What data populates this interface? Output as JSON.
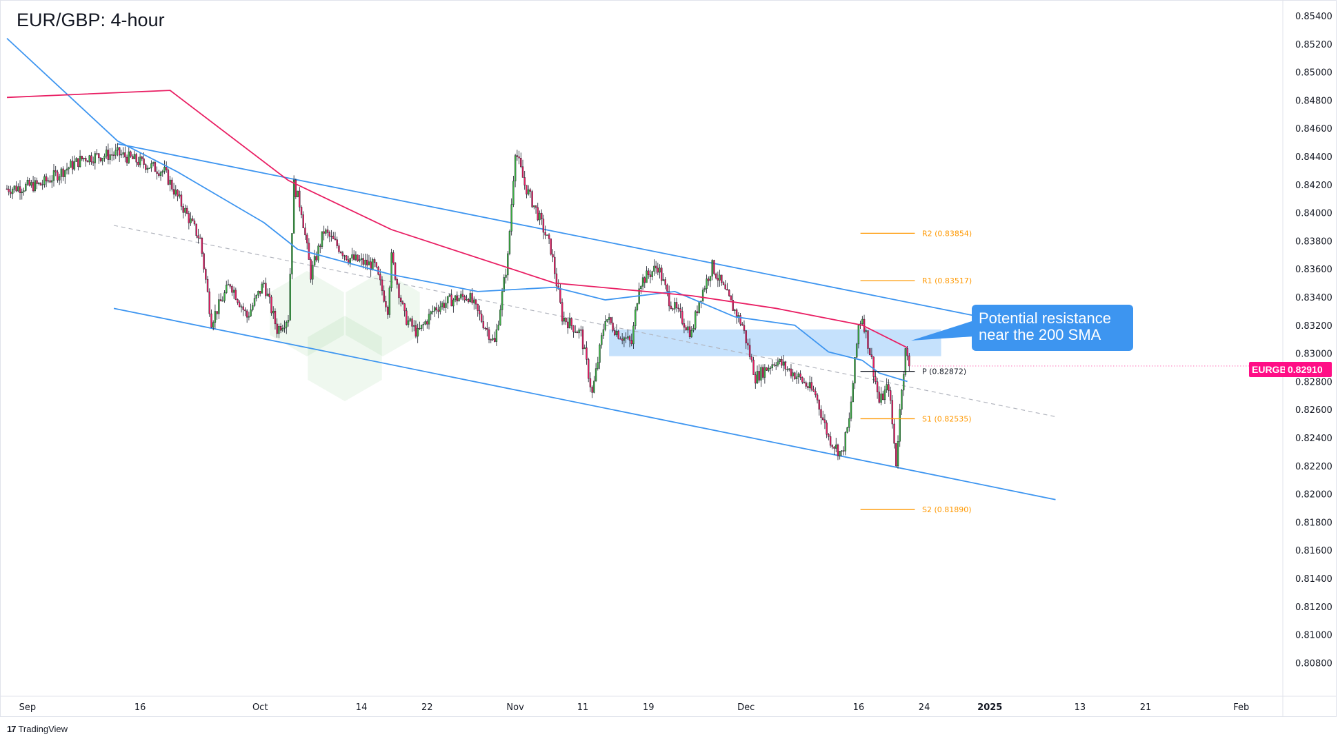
{
  "title": "EUR/GBP: 4-hour",
  "branding": "TradingView",
  "callout": {
    "line1": "Potential resistance",
    "line2": "near the 200 SMA",
    "color": "#3d95f0"
  },
  "price_tag": {
    "symbol": "EURGBP",
    "value": "0.82910",
    "color": "#ff0e86"
  },
  "colors": {
    "up": "#3cb043",
    "down": "#e91e63",
    "sma200": "#e91e63",
    "sma100": "#3d95f0",
    "channel": "#3d95f0",
    "pivot": "#ff9800",
    "zone": "#bbdcfb"
  },
  "chart_data": {
    "type": "candlestick",
    "ylim": [
      0.806,
      0.855
    ],
    "y_ticks": [
      "0.85400",
      "0.85200",
      "0.85000",
      "0.84800",
      "0.84600",
      "0.84400",
      "0.84200",
      "0.84000",
      "0.83800",
      "0.83600",
      "0.83400",
      "0.83200",
      "0.83000",
      "0.82800",
      "0.82600",
      "0.82400",
      "0.82200",
      "0.82000",
      "0.81800",
      "0.81600",
      "0.81400",
      "0.81200",
      "0.81000",
      "0.80800"
    ],
    "x_ticks": [
      {
        "label": "Sep",
        "bar": 11
      },
      {
        "label": "16",
        "bar": 71
      },
      {
        "label": "Oct",
        "bar": 135
      },
      {
        "label": "14",
        "bar": 189
      },
      {
        "label": "22",
        "bar": 224
      },
      {
        "label": "Nov",
        "bar": 271
      },
      {
        "label": "11",
        "bar": 307
      },
      {
        "label": "19",
        "bar": 342
      },
      {
        "label": "Dec",
        "bar": 394
      },
      {
        "label": "16",
        "bar": 454
      },
      {
        "label": "24",
        "bar": 489
      },
      {
        "label": "2025",
        "bar": 524
      },
      {
        "label": "13",
        "bar": 572
      },
      {
        "label": "21",
        "bar": 607
      },
      {
        "label": "Feb",
        "bar": 658
      }
    ],
    "price_path": [
      [
        0,
        0.8417
      ],
      [
        18,
        0.842
      ],
      [
        41,
        0.8439
      ],
      [
        59,
        0.8442
      ],
      [
        73,
        0.8435
      ],
      [
        84,
        0.8429
      ],
      [
        91,
        0.8411
      ],
      [
        103,
        0.8381
      ],
      [
        109,
        0.8323
      ],
      [
        119,
        0.835
      ],
      [
        128,
        0.8326
      ],
      [
        137,
        0.835
      ],
      [
        144,
        0.8317
      ],
      [
        150,
        0.8326
      ],
      [
        153,
        0.842
      ],
      [
        157,
        0.8402
      ],
      [
        162,
        0.8356
      ],
      [
        169,
        0.8387
      ],
      [
        182,
        0.8368
      ],
      [
        196,
        0.8362
      ],
      [
        203,
        0.8332
      ],
      [
        205,
        0.8368
      ],
      [
        212,
        0.8326
      ],
      [
        219,
        0.8314
      ],
      [
        228,
        0.8332
      ],
      [
        237,
        0.8338
      ],
      [
        246,
        0.8341
      ],
      [
        260,
        0.8307
      ],
      [
        267,
        0.8368
      ],
      [
        271,
        0.8445
      ],
      [
        276,
        0.842
      ],
      [
        283,
        0.8399
      ],
      [
        290,
        0.8374
      ],
      [
        296,
        0.8326
      ],
      [
        306,
        0.8314
      ],
      [
        312,
        0.8271
      ],
      [
        319,
        0.8326
      ],
      [
        326,
        0.8314
      ],
      [
        333,
        0.8307
      ],
      [
        337,
        0.835
      ],
      [
        347,
        0.8362
      ],
      [
        353,
        0.8338
      ],
      [
        365,
        0.8314
      ],
      [
        369,
        0.8338
      ],
      [
        376,
        0.8362
      ],
      [
        385,
        0.8338
      ],
      [
        392,
        0.832
      ],
      [
        399,
        0.8283
      ],
      [
        410,
        0.8295
      ],
      [
        422,
        0.8283
      ],
      [
        431,
        0.8271
      ],
      [
        438,
        0.824
      ],
      [
        445,
        0.8228
      ],
      [
        449,
        0.8252
      ],
      [
        454,
        0.832
      ],
      [
        456,
        0.8326
      ],
      [
        461,
        0.8295
      ],
      [
        465,
        0.8265
      ],
      [
        470,
        0.8277
      ],
      [
        474,
        0.8222
      ],
      [
        477,
        0.8277
      ],
      [
        479,
        0.8301
      ],
      [
        481,
        0.8291
      ]
    ],
    "sma200": [
      [
        0,
        0.8482
      ],
      [
        87,
        0.8487
      ],
      [
        150,
        0.8423
      ],
      [
        205,
        0.8388
      ],
      [
        292,
        0.835
      ],
      [
        365,
        0.8341
      ],
      [
        410,
        0.8332
      ],
      [
        456,
        0.832
      ],
      [
        480,
        0.8304
      ]
    ],
    "sma100": [
      [
        0,
        0.8524
      ],
      [
        59,
        0.8451
      ],
      [
        91,
        0.8429
      ],
      [
        137,
        0.8393
      ],
      [
        155,
        0.8374
      ],
      [
        205,
        0.8356
      ],
      [
        251,
        0.8344
      ],
      [
        292,
        0.8347
      ],
      [
        319,
        0.8338
      ],
      [
        356,
        0.8344
      ],
      [
        388,
        0.8326
      ],
      [
        420,
        0.832
      ],
      [
        438,
        0.8301
      ],
      [
        456,
        0.8295
      ],
      [
        465,
        0.8286
      ],
      [
        480,
        0.828
      ]
    ],
    "channel_upper": [
      [
        59,
        0.8449
      ],
      [
        515,
        0.8327
      ]
    ],
    "channel_lower": [
      [
        57,
        0.8332
      ],
      [
        559,
        0.8196
      ]
    ],
    "channel_mid": [
      [
        57,
        0.8391
      ],
      [
        559,
        0.8255
      ]
    ],
    "resistance_zone": {
      "bars": [
        321,
        498
      ],
      "prices": [
        0.8298,
        0.8317
      ]
    },
    "pivots": [
      {
        "label": "R2 (0.83854)",
        "value": 0.83854,
        "color": "#ff9800"
      },
      {
        "label": "R1 (0.83517)",
        "value": 0.83517,
        "color": "#ff9800"
      },
      {
        "label": "P (0.82872)",
        "value": 0.82872,
        "color": "#131722"
      },
      {
        "label": "S1 (0.82535)",
        "value": 0.82535,
        "color": "#ff9800"
      },
      {
        "label": "S2 (0.81890)",
        "value": 0.8189,
        "color": "#ff9800"
      }
    ],
    "pivot_bars": [
      455,
      484
    ],
    "last_price": 0.8291
  }
}
